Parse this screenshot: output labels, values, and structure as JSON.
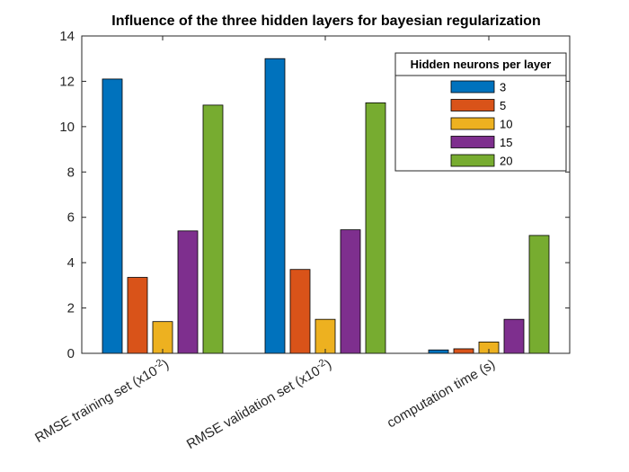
{
  "chart_data": {
    "type": "bar",
    "title": "Influence of the three hidden layers for bayesian regularization",
    "xlabel": "",
    "ylabel": "",
    "ylim": [
      0,
      14
    ],
    "yticks": [
      0,
      2,
      4,
      6,
      8,
      10,
      12,
      14
    ],
    "grid": false,
    "legend_position": "top-right",
    "legend_title": "Hidden neurons per layer",
    "categories": [
      {
        "base": "RMSE training set (x10",
        "sup": "-2",
        "tail": ")"
      },
      {
        "base": "RMSE validation set (x10",
        "sup": "-2",
        "tail": ")"
      },
      {
        "base": "computation time (s)",
        "sup": "",
        "tail": ""
      }
    ],
    "series": [
      {
        "name": "3",
        "color": "#0072BD",
        "values": [
          12.1,
          13.0,
          0.15
        ]
      },
      {
        "name": "5",
        "color": "#D95319",
        "values": [
          3.35,
          3.7,
          0.2
        ]
      },
      {
        "name": "10",
        "color": "#EDB120",
        "values": [
          1.4,
          1.5,
          0.5
        ]
      },
      {
        "name": "15",
        "color": "#7E2F8E",
        "values": [
          5.4,
          5.45,
          1.5
        ]
      },
      {
        "name": "20",
        "color": "#77AC30",
        "values": [
          10.95,
          11.05,
          5.2
        ]
      }
    ]
  }
}
